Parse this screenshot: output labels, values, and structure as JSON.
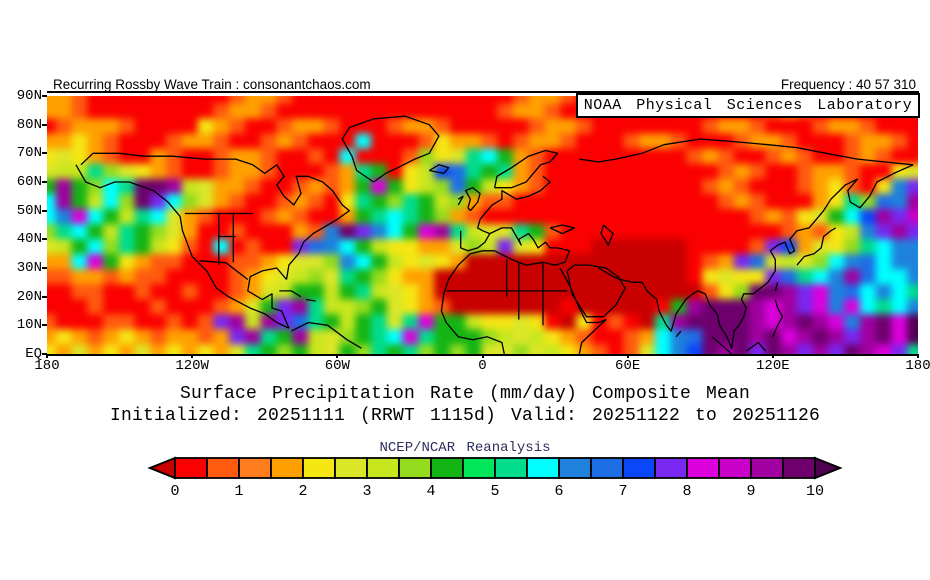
{
  "header": {
    "left_label": "Recurring Rossby Wave Train : consonantchaos.com",
    "right_label": "Frequency : 40 57 310"
  },
  "banner": {
    "text": "NOAA Physical Sciences Laboratory"
  },
  "map_axes": {
    "y_labels": [
      "90N",
      "80N",
      "70N",
      "60N",
      "50N",
      "40N",
      "30N",
      "20N",
      "10N",
      "EQ"
    ],
    "x_labels": [
      "180",
      "120W",
      "60W",
      "0",
      "60E",
      "120E",
      "180"
    ]
  },
  "titles": {
    "line1": "Surface Precipitation Rate (mm/day) Composite Mean",
    "line2": "Initialized: 20251111 (RRWT 1115d) Valid: 20251122 to 20251126",
    "source": "NCEP/NCAR Reanalysis",
    "source_color": "#2e2e5e"
  },
  "colorbar": {
    "tick_labels": [
      "0",
      "1",
      "2",
      "3",
      "4",
      "5",
      "6",
      "7",
      "8",
      "9",
      "10"
    ],
    "segment_colors": [
      "#fa0000",
      "#ff5a0f",
      "#ff7d1e",
      "#ffa000",
      "#f5e614",
      "#dce628",
      "#c8e61e",
      "#96dc1e",
      "#14b414",
      "#00e65a",
      "#00dc8c",
      "#00ffff",
      "#1e82dc",
      "#1e6ee6",
      "#0a46fa",
      "#7828f0",
      "#dc00dc",
      "#c800c8",
      "#a000a0",
      "#6e006e"
    ],
    "left_arrow_color": "#c80000",
    "right_arrow_color": "#500050"
  },
  "chart_data": {
    "type": "heatmap",
    "title": "Surface Precipitation Rate (mm/day) Composite Mean",
    "subtitle": "Initialized: 20251111 (RRWT 1115d) Valid: 20251122 to 20251126",
    "source": "NCEP/NCAR Reanalysis",
    "units": "mm/day",
    "lon_range": [
      -180,
      180
    ],
    "lat_range": [
      0,
      90
    ],
    "colorbar_ticks": [
      0,
      1,
      2,
      3,
      4,
      5,
      6,
      7,
      8,
      9,
      10
    ],
    "palette": {
      "0": "#c80000",
      "1": "#fa0000",
      "2": "#ff5a0f",
      "3": "#ff7d1e",
      "4": "#ffa000",
      "5": "#f5e614",
      "6": "#dce628",
      "7": "#c8e61e",
      "8": "#96dc1e",
      "9": "#14b414",
      "a": "#00e65a",
      "b": "#00dc8c",
      "c": "#00ffff",
      "d": "#1e82dc",
      "e": "#1e6ee6",
      "f": "#0a46fa",
      "g": "#7828f0",
      "h": "#dc00dc",
      "i": "#c800c8",
      "j": "#a000a0",
      "k": "#6e006e",
      "l": "#500050"
    },
    "palette_values_mm_day": {
      "0": 0,
      "1": 0.25,
      "2": 0.75,
      "3": 1.25,
      "4": 1.75,
      "5": 2.25,
      "6": 2.75,
      "7": 3.25,
      "8": 3.75,
      "9": 4.25,
      "a": 4.75,
      "b": 5.25,
      "c": 5.75,
      "d": 6.25,
      "e": 6.75,
      "f": 7.25,
      "g": 7.75,
      "h": 8.25,
      "i": 8.75,
      "j": 9.25,
      "k": 9.75,
      "l": 10.5
    },
    "grid_note": "58 cols (180W to 180E) x 18 rows (85-90N top to 0-5N bottom); each char is a palette key",
    "grid": [
      "444211111111124421111111111111124421111111111111211244211X",
      "24421111111124421111111111111124421111111111111242111111XX",
      "112444211115421124421112442111112442111111124421112442111X",
      "244542111244211242111c111254421244211124421112442111244211",
      "45654211421124421121c1112856bc9421111111112421124211242114",
      "5677b8654211244211124b9157feb9b4211111111111242112442115654",
      "89j98cbkkj764421124249h9578e975421111111111242111245215dge",
      "9cj97c8kgc86421124215b98b978422111111111111124211145b8edjg",
      "7cdhc97bc6421112421149bcb984211111111111111111242569cfjgi",
      "58bc97b986411211142dkgdc9hjb766b921111111111111124257dgjgdc",
      "4679c8b97521c1211gedc975544687g6511100000011112gf4658bcddc",
      "244ch954221112245668dc97565400000000000000124ge6768cdecddc",
      "12244242211112456786b98544000000000000000015655gebcdjeccdb",
      "111221121121124679979b765400000000000000000258kkjghdecdcbdcc",
      "1111211121112469gjb778965420000000100000 9jkkkjhjghdhcbcdch",
      "221112211212gj7jgeb979b6bh99755651051210bjkkkkjhjkjhdjkhlj",
      "5454245424424gjb9j7689bchb99987675421124cdekkkjkhjkjgjkhlj",
      "45464546454546b9897698b9b898966867542126cdfkjkgkjgjgkjhgbj"
    ]
  }
}
